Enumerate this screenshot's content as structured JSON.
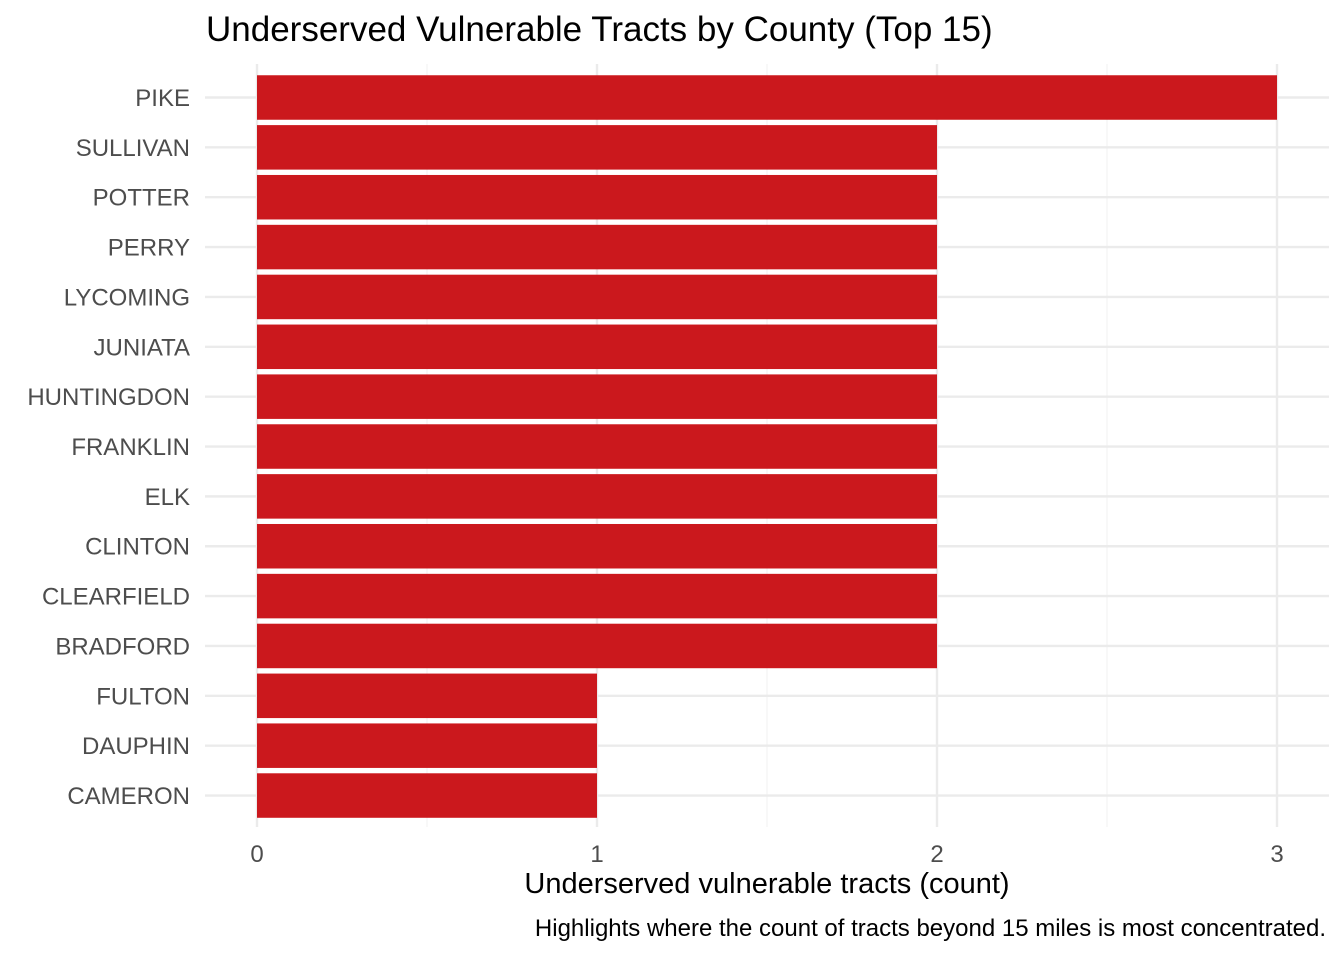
{
  "chart_data": {
    "type": "bar",
    "orientation": "horizontal",
    "title": "Underserved Vulnerable Tracts by County (Top 15)",
    "xlabel": "Underserved vulnerable tracts (count)",
    "ylabel": "",
    "caption": "Highlights where the count of tracts beyond 15 miles is most concentrated.",
    "categories": [
      "PIKE",
      "SULLIVAN",
      "POTTER",
      "PERRY",
      "LYCOMING",
      "JUNIATA",
      "HUNTINGDON",
      "FRANKLIN",
      "ELK",
      "CLINTON",
      "CLEARFIELD",
      "BRADFORD",
      "FULTON",
      "DAUPHIN",
      "CAMERON"
    ],
    "values": [
      3,
      2,
      2,
      2,
      2,
      2,
      2,
      2,
      2,
      2,
      2,
      2,
      1,
      1,
      1
    ],
    "xlim": [
      0,
      3
    ],
    "xticks": [
      0,
      1,
      2,
      3
    ],
    "grid": true,
    "legend": "none",
    "bar_color": "#CB181D"
  }
}
